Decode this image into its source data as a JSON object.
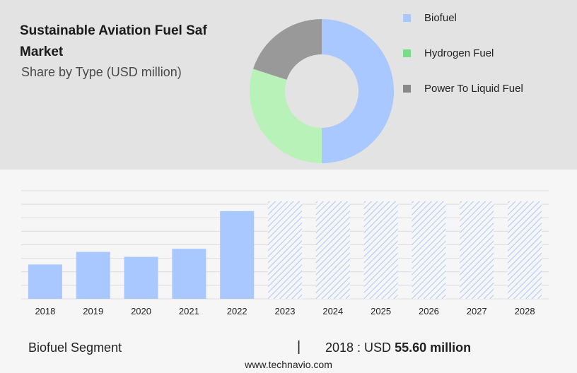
{
  "header": {
    "title": "Sustainable Aviation Fuel Saf Market",
    "subtitle": "Share by Type (USD million)"
  },
  "chart_data": [
    {
      "type": "pie",
      "style": "donut",
      "categories": [
        "Biofuel",
        "Hydrogen Fuel",
        "Power To Liquid Fuel"
      ],
      "values": [
        50,
        30,
        20
      ],
      "colors": [
        "#a8c8ff",
        "#b8f2b8",
        "#999999"
      ],
      "legend": [
        {
          "label": "Biofuel",
          "color": "#a8c8ff"
        },
        {
          "label": "Hydrogen Fuel",
          "color": "#77dd88"
        },
        {
          "label": "Power To Liquid Fuel",
          "color": "#888888"
        }
      ],
      "legend_position": "right"
    },
    {
      "type": "bar",
      "categories": [
        "2018",
        "2019",
        "2020",
        "2021",
        "2022",
        "2023",
        "2024",
        "2025",
        "2026",
        "2027",
        "2028"
      ],
      "values": [
        55.6,
        76,
        68,
        81,
        142,
        158,
        158,
        158,
        158,
        158,
        158
      ],
      "forecast_from": "2023",
      "bar_color": "#a8c8ff",
      "forecast_style": "hatched",
      "ylim": [
        0,
        175
      ],
      "grid": true
    }
  ],
  "footer": {
    "segment": "Biofuel Segment",
    "divider": "|",
    "year_label": "2018 : USD",
    "value": "55.60 million"
  },
  "website": "www.technavio.com"
}
